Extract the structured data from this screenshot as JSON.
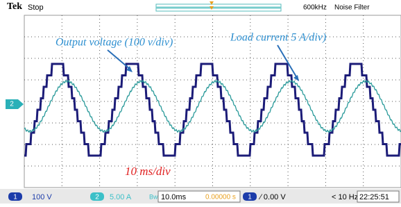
{
  "header": {
    "brand": "Tek",
    "status": "Stop",
    "bandwidth": "600kHz",
    "filter": "Noise Filter"
  },
  "annotations": {
    "voltage": "Output voltage (100 v/div)",
    "current": "Load current 5 A/div)",
    "timebase": "10 ms/div"
  },
  "channel_marker": "2",
  "footer": {
    "ch1": "1",
    "ch1_scale": "100 V",
    "ch2": "2",
    "ch2_scale": "5.00 A",
    "bw": "Bᴡ",
    "time": "10.0ms",
    "position": "0.00000 s",
    "trig_ch": "1",
    "trig_level": "∕ 0.00 V",
    "freq": "< 10 Hz",
    "clock": "22:25:51"
  }
}
